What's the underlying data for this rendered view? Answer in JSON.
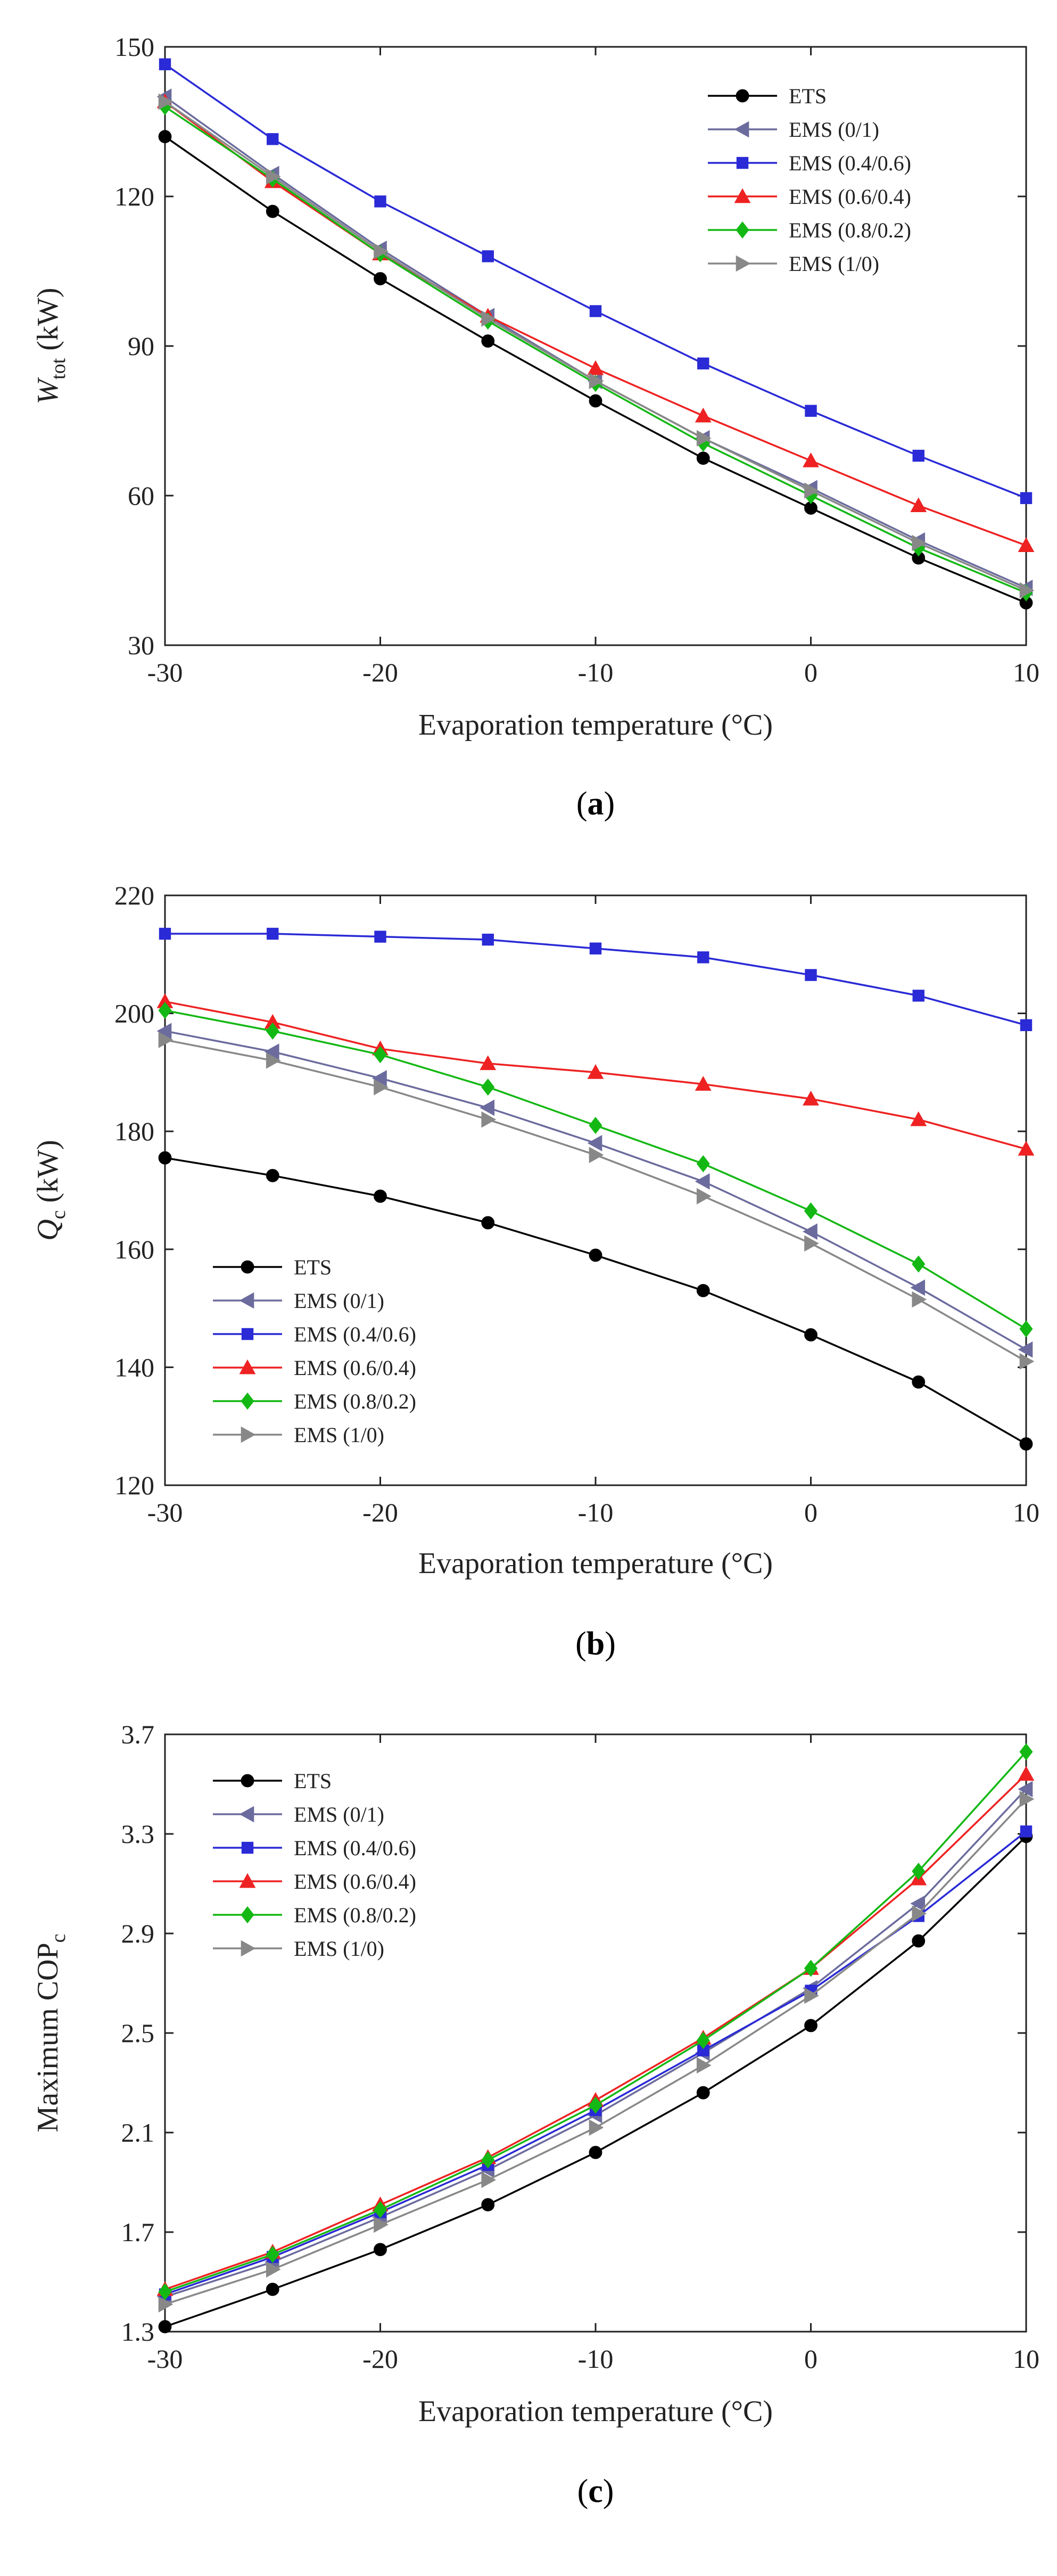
{
  "chart_data": [
    {
      "type": "line",
      "panel_label": "(a)",
      "panel_letter": "a",
      "xlabel": "Evaporation temperature (°C)",
      "ylabel": {
        "main": "W",
        "sub": "tot",
        "unit": "(kW)"
      },
      "xlim": [
        -30,
        10
      ],
      "ylim": [
        30,
        150
      ],
      "xticks": [
        -30,
        -20,
        -10,
        0,
        10
      ],
      "yticks": [
        30,
        60,
        90,
        120,
        150
      ],
      "legend_position": "top-right",
      "x": [
        -30,
        -25,
        -20,
        -15,
        -10,
        -5,
        0,
        5,
        10
      ],
      "series": [
        {
          "name": "ETS",
          "values": [
            132,
            117,
            103.5,
            91,
            79,
            67.5,
            57.5,
            47.5,
            38.5
          ]
        },
        {
          "name": "EMS (0/1)",
          "values": [
            140,
            124.5,
            109.5,
            96,
            83,
            71.5,
            61.5,
            51,
            41.5
          ]
        },
        {
          "name": "EMS (0.4/0.6)",
          "values": [
            146.5,
            131.5,
            119,
            108,
            97,
            86.5,
            77,
            68,
            59.5
          ]
        },
        {
          "name": "EMS (0.6/0.4)",
          "values": [
            139,
            123,
            108.5,
            96,
            85.5,
            76,
            67,
            58,
            50
          ]
        },
        {
          "name": "EMS (0.8/0.2)",
          "values": [
            138,
            123.5,
            108.5,
            95,
            82.5,
            70.5,
            60,
            49.5,
            40.5
          ]
        },
        {
          "name": "EMS (1/0)",
          "values": [
            139,
            124,
            109,
            95.5,
            83,
            71.5,
            61,
            50.5,
            41
          ]
        }
      ]
    },
    {
      "type": "line",
      "panel_label": "(b)",
      "panel_letter": "b",
      "xlabel": "Evaporation temperature (°C)",
      "ylabel": {
        "main": "Q",
        "sub": "c",
        "unit": "(kW)"
      },
      "xlim": [
        -30,
        10
      ],
      "ylim": [
        120,
        220
      ],
      "xticks": [
        -30,
        -20,
        -10,
        0,
        10
      ],
      "yticks": [
        120,
        140,
        160,
        180,
        200,
        220
      ],
      "legend_position": "bottom-left",
      "x": [
        -30,
        -25,
        -20,
        -15,
        -10,
        -5,
        0,
        5,
        10
      ],
      "series": [
        {
          "name": "ETS",
          "values": [
            175.5,
            172.5,
            169,
            164.5,
            159,
            153,
            145.5,
            137.5,
            127
          ]
        },
        {
          "name": "EMS (0/1)",
          "values": [
            197,
            193.5,
            189,
            184,
            178,
            171.5,
            163,
            153.5,
            143
          ]
        },
        {
          "name": "EMS (0.4/0.6)",
          "values": [
            213.5,
            213.5,
            213,
            212.5,
            211,
            209.5,
            206.5,
            203,
            198
          ]
        },
        {
          "name": "EMS (0.6/0.4)",
          "values": [
            202,
            198.5,
            194,
            191.5,
            190,
            188,
            185.5,
            182,
            177
          ]
        },
        {
          "name": "EMS (0.8/0.2)",
          "values": [
            200.5,
            197,
            193,
            187.5,
            181,
            174.5,
            166.5,
            157.5,
            146.5
          ]
        },
        {
          "name": "EMS (1/0)",
          "values": [
            195.5,
            192,
            187.5,
            182,
            176,
            169,
            161,
            151.5,
            141
          ]
        }
      ]
    },
    {
      "type": "line",
      "panel_label": "(c)",
      "panel_letter": "c",
      "xlabel": "Evaporation temperature (°C)",
      "ylabel": {
        "main": "Maximum COP",
        "sub": "c",
        "unit": ""
      },
      "xlim": [
        -30,
        10
      ],
      "ylim": [
        1.3,
        3.7
      ],
      "xticks": [
        -30,
        -20,
        -10,
        0,
        10
      ],
      "yticks": [
        1.3,
        1.7,
        2.1,
        2.5,
        2.9,
        3.3,
        3.7
      ],
      "legend_position": "top-left",
      "x": [
        -30,
        -25,
        -20,
        -15,
        -10,
        -5,
        0,
        5,
        10
      ],
      "series": [
        {
          "name": "ETS",
          "values": [
            1.32,
            1.47,
            1.63,
            1.81,
            2.02,
            2.26,
            2.53,
            2.87,
            3.29
          ]
        },
        {
          "name": "EMS (0/1)",
          "values": [
            1.44,
            1.58,
            1.76,
            1.95,
            2.17,
            2.42,
            2.68,
            3.02,
            3.48
          ]
        },
        {
          "name": "EMS (0.4/0.6)",
          "values": [
            1.45,
            1.6,
            1.78,
            1.97,
            2.19,
            2.43,
            2.67,
            2.97,
            3.31
          ]
        },
        {
          "name": "EMS (0.6/0.4)",
          "values": [
            1.47,
            1.62,
            1.81,
            2.0,
            2.23,
            2.48,
            2.76,
            3.12,
            3.54
          ]
        },
        {
          "name": "EMS (0.8/0.2)",
          "values": [
            1.46,
            1.61,
            1.79,
            1.99,
            2.21,
            2.47,
            2.76,
            3.15,
            3.63
          ]
        },
        {
          "name": "EMS (1/0)",
          "values": [
            1.41,
            1.55,
            1.73,
            1.91,
            2.12,
            2.37,
            2.65,
            2.98,
            3.44
          ]
        }
      ]
    }
  ],
  "series_styles": [
    {
      "color": "#000000",
      "marker": "circle"
    },
    {
      "color": "#6b6b9e",
      "marker": "triangle-left"
    },
    {
      "color": "#2a2ad6",
      "marker": "square"
    },
    {
      "color": "#ee2222",
      "marker": "triangle-up"
    },
    {
      "color": "#14b814",
      "marker": "diamond"
    },
    {
      "color": "#888888",
      "marker": "triangle-right"
    }
  ]
}
